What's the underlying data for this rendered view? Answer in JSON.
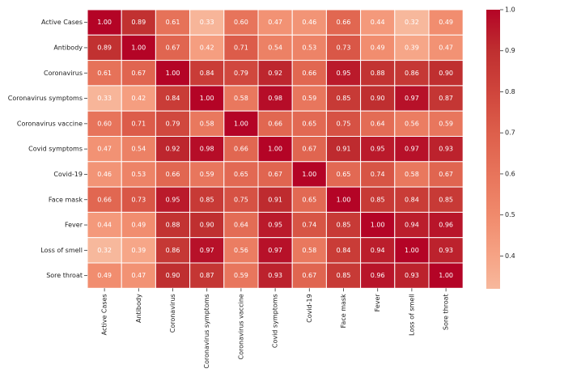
{
  "chart_data": {
    "type": "heatmap",
    "title": "",
    "xlabel": "",
    "ylabel": "",
    "row_labels": [
      "Active Cases",
      "Antibody",
      "Coronavirus",
      "Coronavirus symptoms",
      "Coronavirus vaccine",
      "Covid symptoms",
      "Covid-19",
      "Face mask",
      "Fever",
      "Loss of smell",
      "Sore throat"
    ],
    "col_labels": [
      "Active Cases",
      "Antibody",
      "Coronavirus",
      "Coronavirus symptoms",
      "Coronavirus vaccine",
      "Covid symptoms",
      "Covid-19",
      "Face mask",
      "Fever",
      "Loss of smell",
      "Sore throat"
    ],
    "values": [
      [
        1.0,
        0.89,
        0.61,
        0.33,
        0.6,
        0.47,
        0.46,
        0.66,
        0.44,
        0.32,
        0.49
      ],
      [
        0.89,
        1.0,
        0.67,
        0.42,
        0.71,
        0.54,
        0.53,
        0.73,
        0.49,
        0.39,
        0.47
      ],
      [
        0.61,
        0.67,
        1.0,
        0.84,
        0.79,
        0.92,
        0.66,
        0.95,
        0.88,
        0.86,
        0.9
      ],
      [
        0.33,
        0.42,
        0.84,
        1.0,
        0.58,
        0.98,
        0.59,
        0.85,
        0.9,
        0.97,
        0.87
      ],
      [
        0.6,
        0.71,
        0.79,
        0.58,
        1.0,
        0.66,
        0.65,
        0.75,
        0.64,
        0.56,
        0.59
      ],
      [
        0.47,
        0.54,
        0.92,
        0.98,
        0.66,
        1.0,
        0.67,
        0.91,
        0.95,
        0.97,
        0.93
      ],
      [
        0.46,
        0.53,
        0.66,
        0.59,
        0.65,
        0.67,
        1.0,
        0.65,
        0.74,
        0.58,
        0.67
      ],
      [
        0.66,
        0.73,
        0.95,
        0.85,
        0.75,
        0.91,
        0.65,
        1.0,
        0.85,
        0.84,
        0.85
      ],
      [
        0.44,
        0.49,
        0.88,
        0.9,
        0.64,
        0.95,
        0.74,
        0.85,
        1.0,
        0.94,
        0.96
      ],
      [
        0.32,
        0.39,
        0.86,
        0.97,
        0.56,
        0.97,
        0.58,
        0.84,
        0.94,
        1.0,
        0.93
      ],
      [
        0.49,
        0.47,
        0.9,
        0.87,
        0.59,
        0.93,
        0.67,
        0.85,
        0.96,
        0.93,
        1.0
      ]
    ],
    "value_format": "0.00",
    "colorbar": {
      "range": [
        0.32,
        1.0
      ],
      "ticks": [
        "0.4",
        "0.5",
        "0.6",
        "0.7",
        "0.8",
        "0.9",
        "1.0"
      ],
      "colormap": "coolwarm (upper half)",
      "color_stops": [
        {
          "v": 0.32,
          "color": "#f7b89c"
        },
        {
          "v": 0.4,
          "color": "#f6a385"
        },
        {
          "v": 0.5,
          "color": "#f08a6c"
        },
        {
          "v": 0.6,
          "color": "#e7745b"
        },
        {
          "v": 0.7,
          "color": "#dd5f4b"
        },
        {
          "v": 0.8,
          "color": "#cf453c"
        },
        {
          "v": 0.9,
          "color": "#bf2f30"
        },
        {
          "v": 1.0,
          "color": "#b40426"
        }
      ]
    },
    "grid": false,
    "cell_border_color": "#ffffff"
  }
}
